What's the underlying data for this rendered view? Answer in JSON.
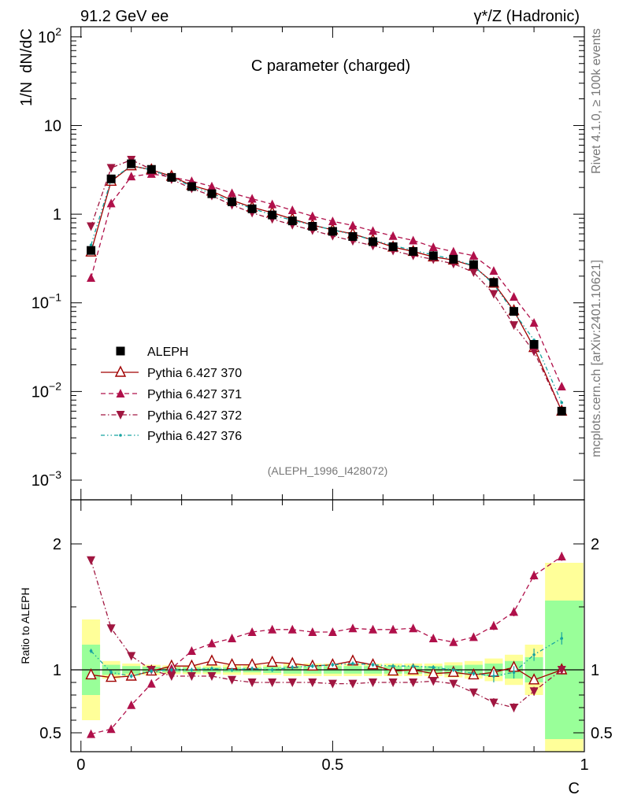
{
  "header": {
    "left": "91.2 GeV ee",
    "right": "γ*/Z (Hadronic)"
  },
  "side_text": {
    "rivet": "Rivet 4.1.0, ≥ 100k events",
    "mcplots": "mcplots.cern.ch [arXiv:2401.10621]"
  },
  "chart_data": {
    "type": "line",
    "title": "C parameter (charged)",
    "analysis_id": "(ALEPH_1996_I428072)",
    "ylabel": "1/N  dN/dC",
    "xlabel": "C",
    "ratio_ylabel": "Ratio to ALEPH",
    "xlim": [
      -0.02,
      1.0
    ],
    "ylim": [
      0.0006,
      130
    ],
    "ratio_ylim": [
      0.35,
      2.35
    ],
    "yscale": "log",
    "x_ticks": [
      {
        "v": 0,
        "label": "0"
      },
      {
        "v": 0.5,
        "label": "0.5"
      },
      {
        "v": 1,
        "label": "1"
      }
    ],
    "y_ticks": [
      {
        "v": 100,
        "base": "10",
        "exp": "2"
      },
      {
        "v": 10,
        "base": "10",
        "exp": ""
      },
      {
        "v": 1,
        "base": "1",
        "exp": ""
      },
      {
        "v": 0.1,
        "base": "10",
        "exp": "−1"
      },
      {
        "v": 0.01,
        "base": "10",
        "exp": "−2"
      },
      {
        "v": 0.001,
        "base": "10",
        "exp": "−3"
      }
    ],
    "ratio_ticks": [
      {
        "v": 0.5,
        "label": "0.5"
      },
      {
        "v": 1,
        "label": "1"
      },
      {
        "v": 2,
        "label": "2"
      }
    ],
    "x": [
      0.02,
      0.06,
      0.1,
      0.14,
      0.18,
      0.22,
      0.26,
      0.3,
      0.34,
      0.38,
      0.42,
      0.46,
      0.5,
      0.54,
      0.58,
      0.62,
      0.66,
      0.7,
      0.74,
      0.78,
      0.82,
      0.86,
      0.9,
      0.955
    ],
    "x_edges": [
      0.0,
      0.04,
      0.08,
      0.12,
      0.16,
      0.2,
      0.24,
      0.28,
      0.32,
      0.36,
      0.4,
      0.44,
      0.48,
      0.52,
      0.56,
      0.6,
      0.64,
      0.68,
      0.72,
      0.76,
      0.8,
      0.84,
      0.88,
      0.92,
      1.0
    ],
    "band_inner": [
      0.2,
      0.04,
      0.03,
      0.025,
      0.02,
      0.02,
      0.02,
      0.02,
      0.02,
      0.025,
      0.03,
      0.03,
      0.03,
      0.03,
      0.03,
      0.03,
      0.03,
      0.03,
      0.035,
      0.04,
      0.05,
      0.07,
      0.1,
      0.55
    ],
    "band_outer": [
      0.4,
      0.07,
      0.05,
      0.04,
      0.035,
      0.035,
      0.035,
      0.04,
      0.04,
      0.04,
      0.05,
      0.05,
      0.05,
      0.05,
      0.05,
      0.05,
      0.05,
      0.05,
      0.06,
      0.07,
      0.09,
      0.12,
      0.2,
      0.85
    ],
    "series": [
      {
        "name": "ALEPH",
        "style": "data",
        "color": "#000000",
        "values": [
          0.39,
          2.5,
          3.7,
          3.2,
          2.6,
          2.05,
          1.7,
          1.38,
          1.15,
          0.98,
          0.84,
          0.73,
          0.64,
          0.56,
          0.49,
          0.43,
          0.38,
          0.34,
          0.31,
          0.27,
          0.17,
          0.08,
          0.034,
          0.006
        ]
      },
      {
        "name": "Pythia 6.427 370",
        "style": "solid",
        "marker": "triangle-open",
        "color": "#a00000",
        "ratio": [
          0.96,
          0.94,
          0.95,
          0.99,
          1.03,
          1.03,
          1.07,
          1.04,
          1.04,
          1.06,
          1.05,
          1.03,
          1.04,
          1.07,
          1.04,
          0.99,
          1.0,
          0.97,
          0.98,
          0.96,
          0.98,
          1.02,
          0.92,
          1.0
        ]
      },
      {
        "name": "Pythia 6.427 371",
        "style": "dash",
        "marker": "triangle-up",
        "color": "#b0104a",
        "ratio": [
          0.49,
          0.53,
          0.72,
          0.89,
          1.01,
          1.15,
          1.21,
          1.25,
          1.3,
          1.32,
          1.32,
          1.3,
          1.3,
          1.33,
          1.32,
          1.32,
          1.33,
          1.25,
          1.22,
          1.26,
          1.35,
          1.46,
          1.75,
          1.9
        ]
      },
      {
        "name": "Pythia 6.427 372",
        "style": "dashdot",
        "marker": "triangle-down",
        "color": "#a01640",
        "ratio": [
          1.87,
          1.33,
          1.11,
          1.0,
          0.95,
          0.95,
          0.95,
          0.92,
          0.9,
          0.9,
          0.9,
          0.9,
          0.89,
          0.89,
          0.9,
          0.9,
          0.9,
          0.91,
          0.89,
          0.82,
          0.74,
          0.7,
          0.83,
          1.0
        ]
      },
      {
        "name": "Pythia 6.427 376",
        "style": "dashdotdot",
        "marker": "dot",
        "color": "#16a3a0",
        "ratio": [
          1.15,
          0.98,
          0.95,
          0.99,
          1.0,
          1.0,
          1.01,
          1.0,
          1.01,
          1.0,
          1.02,
          1.03,
          1.04,
          1.05,
          1.04,
          1.03,
          1.03,
          1.02,
          1.0,
          0.97,
          0.95,
          0.98,
          1.12,
          1.25
        ]
      }
    ]
  }
}
